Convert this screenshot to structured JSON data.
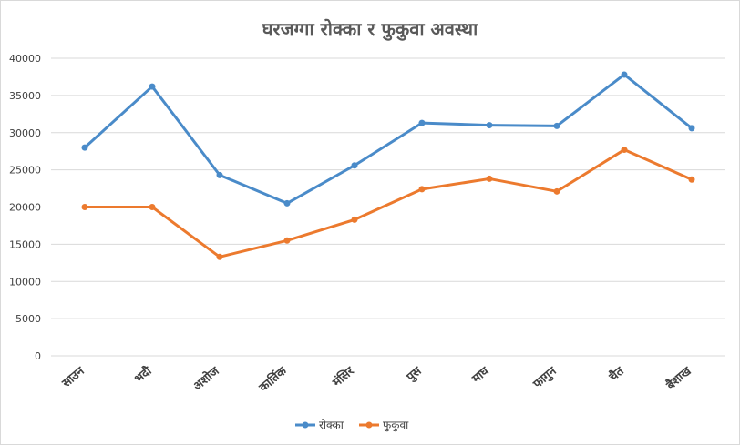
{
  "chart_data": {
    "type": "line",
    "title": "घरजग्गा रोक्का र फुकुवा अवस्था",
    "categories": [
      "साउन",
      "भदौ",
      "अशोज",
      "कार्तिक",
      "मंसिर",
      "पुस",
      "माघ",
      "फागुन",
      "चैत",
      "बैशाख"
    ],
    "series": [
      {
        "name": "रोक्का",
        "color": "#4a8bc9",
        "values": [
          28000,
          36200,
          24300,
          20500,
          25600,
          31300,
          31000,
          30900,
          37800,
          30600
        ]
      },
      {
        "name": "फुकुवा",
        "color": "#ec7a2e",
        "values": [
          20000,
          20000,
          13300,
          15500,
          18300,
          22400,
          23800,
          22100,
          27700,
          23700
        ]
      }
    ],
    "ylim": [
      0,
      40000
    ],
    "yticks": [
      "0",
      "5000",
      "10000",
      "15000",
      "20000",
      "25000",
      "30000",
      "35000",
      "40000"
    ],
    "grid": true,
    "legend": "bottom"
  }
}
